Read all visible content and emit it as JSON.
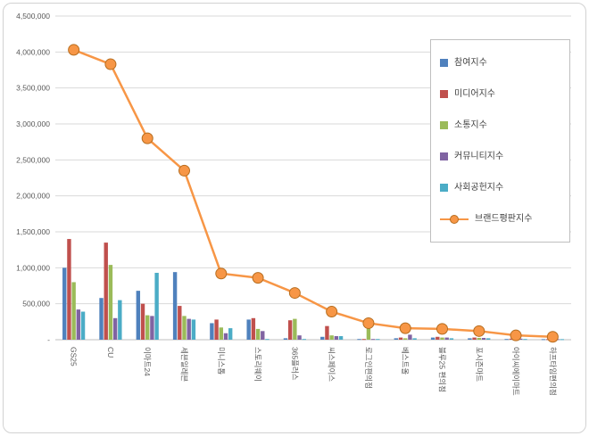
{
  "chart_data": {
    "type": "bar",
    "subtype": "grouped-bars-with-line-overlay",
    "title": "",
    "xlabel": "",
    "ylabel": "",
    "ylim": [
      0,
      4500000
    ],
    "y_tick_step": 500000,
    "y_tick_labels": [
      "-",
      "500,000",
      "1,000,000",
      "1,500,000",
      "2,000,000",
      "2,500,000",
      "3,000,000",
      "3,500,000",
      "4,000,000",
      "4,500,000"
    ],
    "grid": "horizontal",
    "legend_position": "right-top",
    "categories": [
      "GS25",
      "CU",
      "이마트24",
      "세븐일레븐",
      "미니스톱",
      "스토리웨이",
      "365플러스",
      "씨스페이스",
      "로그인편의점",
      "베스트올",
      "블루25 편의점",
      "포시즌마트",
      "아이씨에이마트",
      "하프타임편의점"
    ],
    "series": [
      {
        "key": "participation",
        "name": "참여지수",
        "color": "#4F81BD",
        "values": [
          1000000,
          580000,
          680000,
          940000,
          230000,
          280000,
          20000,
          40000,
          10000,
          20000,
          30000,
          20000,
          10000,
          8000
        ]
      },
      {
        "key": "media",
        "name": "미디어지수",
        "color": "#C0504D",
        "values": [
          1400000,
          1350000,
          500000,
          470000,
          280000,
          300000,
          270000,
          190000,
          10000,
          30000,
          40000,
          30000,
          15000,
          8000
        ]
      },
      {
        "key": "communication",
        "name": "소통지수",
        "color": "#9BBB59",
        "values": [
          800000,
          1040000,
          340000,
          330000,
          170000,
          150000,
          290000,
          60000,
          190000,
          20000,
          30000,
          25000,
          10000,
          8000
        ]
      },
      {
        "key": "community",
        "name": "커뮤니티지수",
        "color": "#8064A2",
        "values": [
          420000,
          300000,
          330000,
          290000,
          90000,
          120000,
          60000,
          50000,
          10000,
          70000,
          30000,
          25000,
          15000,
          8000
        ]
      },
      {
        "key": "social-contribution",
        "name": "사회공헌지수",
        "color": "#4BACC6",
        "values": [
          390000,
          550000,
          930000,
          280000,
          160000,
          10000,
          10000,
          50000,
          10000,
          20000,
          20000,
          20000,
          10000,
          8000
        ]
      }
    ],
    "line": {
      "key": "brand-reputation",
      "name": "브랜드평판지수",
      "color": "#F79646",
      "marker_stroke": "#B66D1F",
      "values": [
        4030000,
        3830000,
        2800000,
        2350000,
        920000,
        860000,
        650000,
        390000,
        230000,
        160000,
        150000,
        120000,
        60000,
        40000
      ]
    }
  }
}
